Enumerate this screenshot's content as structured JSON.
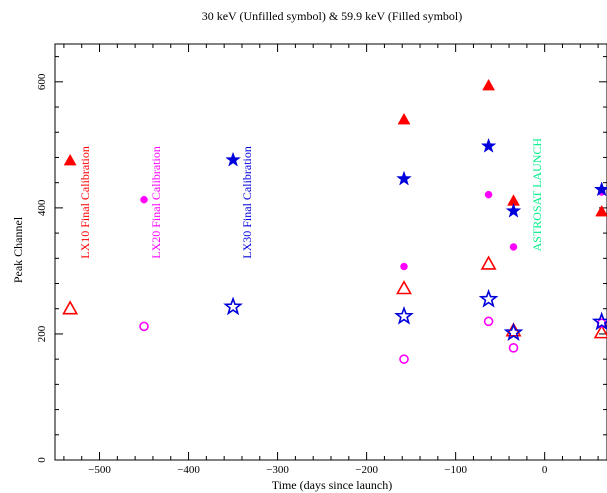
{
  "chart_data": {
    "type": "scatter",
    "title": "30 keV (Unfilled symbol) & 59.9 keV (Filled symbol)",
    "xlabel": "Time (days since launch)",
    "ylabel": "Peak Channel",
    "xlim": [
      -550,
      70
    ],
    "ylim": [
      0,
      660
    ],
    "x_ticks": [
      -500,
      -400,
      -300,
      -200,
      -100,
      0
    ],
    "y_ticks": [
      0,
      200,
      400,
      600
    ],
    "x_tick_labels": [
      "−500",
      "−400",
      "−300",
      "−200",
      "−100",
      "0"
    ],
    "y_tick_labels": [
      "0",
      "200",
      "400",
      "600"
    ],
    "grid": false,
    "series": [
      {
        "marker": "triangle",
        "filled": true,
        "color": "#ff0000",
        "points": [
          [
            -533,
            475
          ],
          [
            -158,
            540
          ],
          [
            -63,
            594
          ],
          [
            -35,
            411
          ],
          [
            64,
            394
          ]
        ]
      },
      {
        "marker": "triangle",
        "filled": false,
        "color": "#ff0000",
        "points": [
          [
            -533,
            240
          ],
          [
            -158,
            272
          ],
          [
            -63,
            311
          ],
          [
            -35,
            205
          ],
          [
            64,
            202
          ]
        ]
      },
      {
        "marker": "circle",
        "filled": true,
        "color": "#ff00ff",
        "points": [
          [
            -450,
            413
          ],
          [
            -158,
            307
          ],
          [
            -63,
            421
          ],
          [
            -35,
            338
          ],
          [
            64,
            425
          ]
        ]
      },
      {
        "marker": "circle",
        "filled": false,
        "color": "#ff00ff",
        "points": [
          [
            -450,
            212
          ],
          [
            -158,
            160
          ],
          [
            -63,
            220
          ],
          [
            -35,
            178
          ],
          [
            64,
            217
          ]
        ]
      },
      {
        "marker": "star",
        "filled": true,
        "color": "#0000dd",
        "points": [
          [
            -350,
            476
          ],
          [
            -158,
            446
          ],
          [
            -63,
            498
          ],
          [
            -35,
            395
          ],
          [
            64,
            429
          ]
        ]
      },
      {
        "marker": "star",
        "filled": false,
        "color": "#0000dd",
        "points": [
          [
            -350,
            243
          ],
          [
            -158,
            228
          ],
          [
            -63,
            255
          ],
          [
            -35,
            202
          ],
          [
            64,
            219
          ]
        ]
      }
    ],
    "annotations": [
      {
        "text": "LX10 Final Calibration",
        "x": -512,
        "y_top": 498,
        "color": "#ff0000"
      },
      {
        "text": "LX20 Final Calibration",
        "x": -432,
        "y_top": 498,
        "color": "#ff00ff"
      },
      {
        "text": "LX30 Final Calibration",
        "x": -330,
        "y_top": 498,
        "color": "#0000dd"
      },
      {
        "text": "ASTROSAT LAUNCH",
        "x": -4,
        "y_top": 511,
        "color": "#00ee88"
      }
    ]
  }
}
